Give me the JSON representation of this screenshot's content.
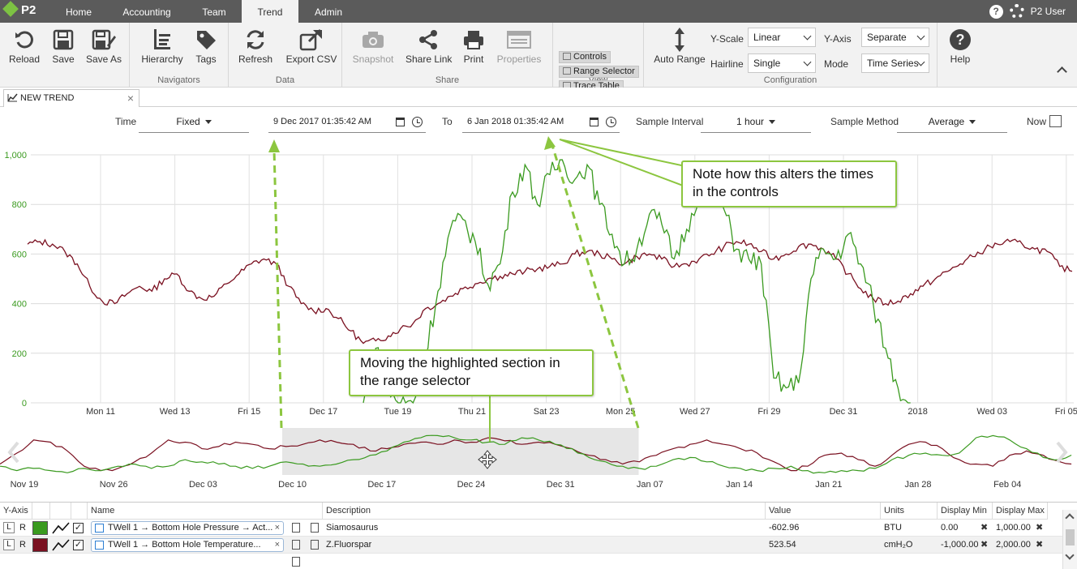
{
  "app": {
    "logo_text": "P2",
    "nav_tabs": [
      "Home",
      "Accounting",
      "Team",
      "Trend",
      "Admin"
    ],
    "active_tab": "Trend",
    "help_glyph": "?",
    "user_name": "P2 User"
  },
  "ribbon": {
    "groups": {
      "navigators": "Navigators",
      "data": "Data",
      "share": "Share",
      "view": "View",
      "configuration": "Configuration"
    },
    "buttons": {
      "reload": "Reload",
      "save": "Save",
      "save_as": "Save As",
      "hierarchy": "Hierarchy",
      "tags": "Tags",
      "refresh": "Refresh",
      "export_csv": "Export CSV",
      "snapshot": "Snapshot",
      "share_link": "Share Link",
      "print": "Print",
      "properties": "Properties",
      "auto_range": "Auto Range",
      "help": "Help"
    },
    "view_items": [
      "Controls",
      "Range Selector",
      "Trace Table"
    ],
    "config": {
      "y_scale_label": "Y-Scale",
      "y_scale_value": "Linear",
      "hairline_label": "Hairline",
      "hairline_value": "Single",
      "y_axis_label": "Y-Axis",
      "y_axis_value": "Separate",
      "mode_label": "Mode",
      "mode_value": "Time Series"
    }
  },
  "doc_tab": {
    "title": "NEW TREND",
    "close": "×"
  },
  "controls": {
    "time_label": "Time",
    "time_mode": "Fixed",
    "from_value": "9 Dec 2017 01:35:42 AM",
    "to_label": "To",
    "to_value": "6 Jan 2018 01:35:42 AM",
    "sample_interval_label": "Sample Interval",
    "sample_interval_value": "1 hour",
    "sample_method_label": "Sample Method",
    "sample_method_value": "Average",
    "now_label": "Now",
    "now_checked": false
  },
  "chart_data": {
    "type": "line",
    "y_ticks": [
      "1,000",
      "800",
      "600",
      "400",
      "200",
      "0"
    ],
    "ylim": [
      0,
      1000
    ],
    "x_ticks": [
      "Mon 11",
      "Wed 13",
      "Fri 15",
      "Dec 17",
      "Tue 19",
      "Thu 21",
      "Sat 23",
      "Mon 25",
      "Wed 27",
      "Fri 29",
      "Dec 31",
      "2018",
      "Wed 03",
      "Fri 05"
    ],
    "grid": true,
    "series": [
      {
        "color": "#7a1020",
        "values": [
          640,
          650,
          640,
          610,
          560,
          470,
          410,
          400,
          440,
          470,
          450,
          500,
          520,
          450,
          420,
          430,
          480,
          520,
          560,
          580,
          560,
          470,
          400,
          370,
          380,
          340,
          290,
          240,
          250,
          270,
          300,
          320,
          380,
          400,
          430,
          460,
          480,
          500,
          510,
          520,
          530,
          540,
          550,
          560,
          600,
          610,
          600,
          580,
          560,
          590,
          600,
          580,
          550,
          560,
          580,
          600,
          630,
          650,
          640,
          610,
          580,
          600,
          630,
          640,
          620,
          580,
          520,
          460,
          420,
          400,
          410,
          440,
          470,
          500,
          530,
          560,
          590,
          620,
          640,
          650,
          640,
          620,
          610,
          550,
          530
        ]
      },
      {
        "color": "#3a9a1f",
        "values": [
          null,
          null,
          null,
          null,
          null,
          null,
          null,
          null,
          null,
          null,
          null,
          null,
          null,
          null,
          null,
          null,
          null,
          null,
          null,
          null,
          null,
          null,
          null,
          null,
          null,
          null,
          null,
          0,
          220,
          50,
          0,
          0,
          200,
          450,
          700,
          740,
          650,
          480,
          560,
          850,
          960,
          800,
          920,
          980,
          900,
          960,
          800,
          680,
          560,
          620,
          760,
          720,
          580,
          700,
          860,
          940,
          780,
          620,
          580,
          560,
          100,
          60,
          80,
          500,
          620,
          580,
          680,
          560,
          400,
          220,
          60,
          0,
          null,
          null,
          null,
          null,
          null,
          null,
          null,
          null,
          null,
          null,
          null,
          null,
          null
        ]
      }
    ]
  },
  "range_selector": {
    "x_ticks": [
      "Nov 19",
      "Nov 26",
      "Dec 03",
      "Dec 10",
      "Dec 17",
      "Dec 24",
      "Dec 31",
      "Jan 07",
      "Jan 14",
      "Jan 21",
      "Jan 28",
      "Feb 04"
    ],
    "selection_start": 0.262,
    "selection_end": 0.593,
    "series": [
      {
        "color": "#7a1020",
        "values": [
          0.25,
          0.5,
          0.8,
          0.75,
          0.55,
          0.2,
          0.1,
          0.15,
          0.3,
          0.5,
          0.8,
          0.75,
          0.6,
          0.65,
          0.75,
          0.7,
          0.6,
          0.65,
          0.7,
          0.8,
          0.75,
          0.7,
          0.55,
          0.6,
          0.7,
          0.75,
          0.7,
          0.8,
          0.75,
          0.85,
          0.78,
          0.7,
          0.75,
          0.7,
          0.6,
          0.45,
          0.35,
          0.25,
          0.3,
          0.45,
          0.6,
          0.7,
          0.8,
          0.7,
          0.6,
          0.5,
          0.3,
          0.1,
          0.2,
          0.45,
          0.5,
          0.35,
          0.2,
          0.45,
          0.7,
          0.75,
          0.6,
          0.35,
          0.25,
          0.2,
          0.45,
          0.55,
          0.45,
          0.3,
          0.25
        ]
      },
      {
        "color": "#3a9a1f",
        "values": [
          0.2,
          0.1,
          0.15,
          0.1,
          0.05,
          0.15,
          0.1,
          0.2,
          0.25,
          0.15,
          0.2,
          0.35,
          0.3,
          0.25,
          0.2,
          0.15,
          0.2,
          0.3,
          0.25,
          0.2,
          0.25,
          0.35,
          0.45,
          0.55,
          0.75,
          0.85,
          0.9,
          0.85,
          0.8,
          0.75,
          0.7,
          0.85,
          0.8,
          0.7,
          0.6,
          0.4,
          0.3,
          0.2,
          0.15,
          0.2,
          0.35,
          0.4,
          0.3,
          0.2,
          0.15,
          0.1,
          0.15,
          0.2,
          0.1,
          0.05,
          0.1,
          0.1,
          0.15,
          0.35,
          0.45,
          0.5,
          0.45,
          0.5,
          0.85,
          0.9,
          0.8,
          0.6,
          0.4,
          0.35,
          0.45
        ]
      }
    ]
  },
  "annotations": {
    "range_note": "Moving the highlighted section in the range selector",
    "controls_note": "Note how this alters the times in the controls"
  },
  "table": {
    "headers": {
      "y_axis": "Y-Axis",
      "name": "Name",
      "description": "Description",
      "value": "Value",
      "units": "Units",
      "display_min": "Display Min",
      "display_max": "Display Max"
    },
    "rows": [
      {
        "l": "L",
        "r": "R",
        "color": "#3a9a1f",
        "checked": "✓",
        "name": "TWell 1 → Bottom Hole Pressure → Act...",
        "description": "Siamosaurus",
        "value": "-602.96",
        "units": "BTU",
        "display_min": "0.00",
        "display_max": "1,000.00"
      },
      {
        "l": "L",
        "r": "R",
        "color": "#7a1020",
        "checked": "✓",
        "name": "TWell 1 → Bottom Hole Temperature...",
        "description": "Z.Fluorspar",
        "value": "523.54",
        "units": "cmH₂O",
        "display_min": "-1,000.00",
        "display_max": "2,000.00"
      }
    ]
  }
}
